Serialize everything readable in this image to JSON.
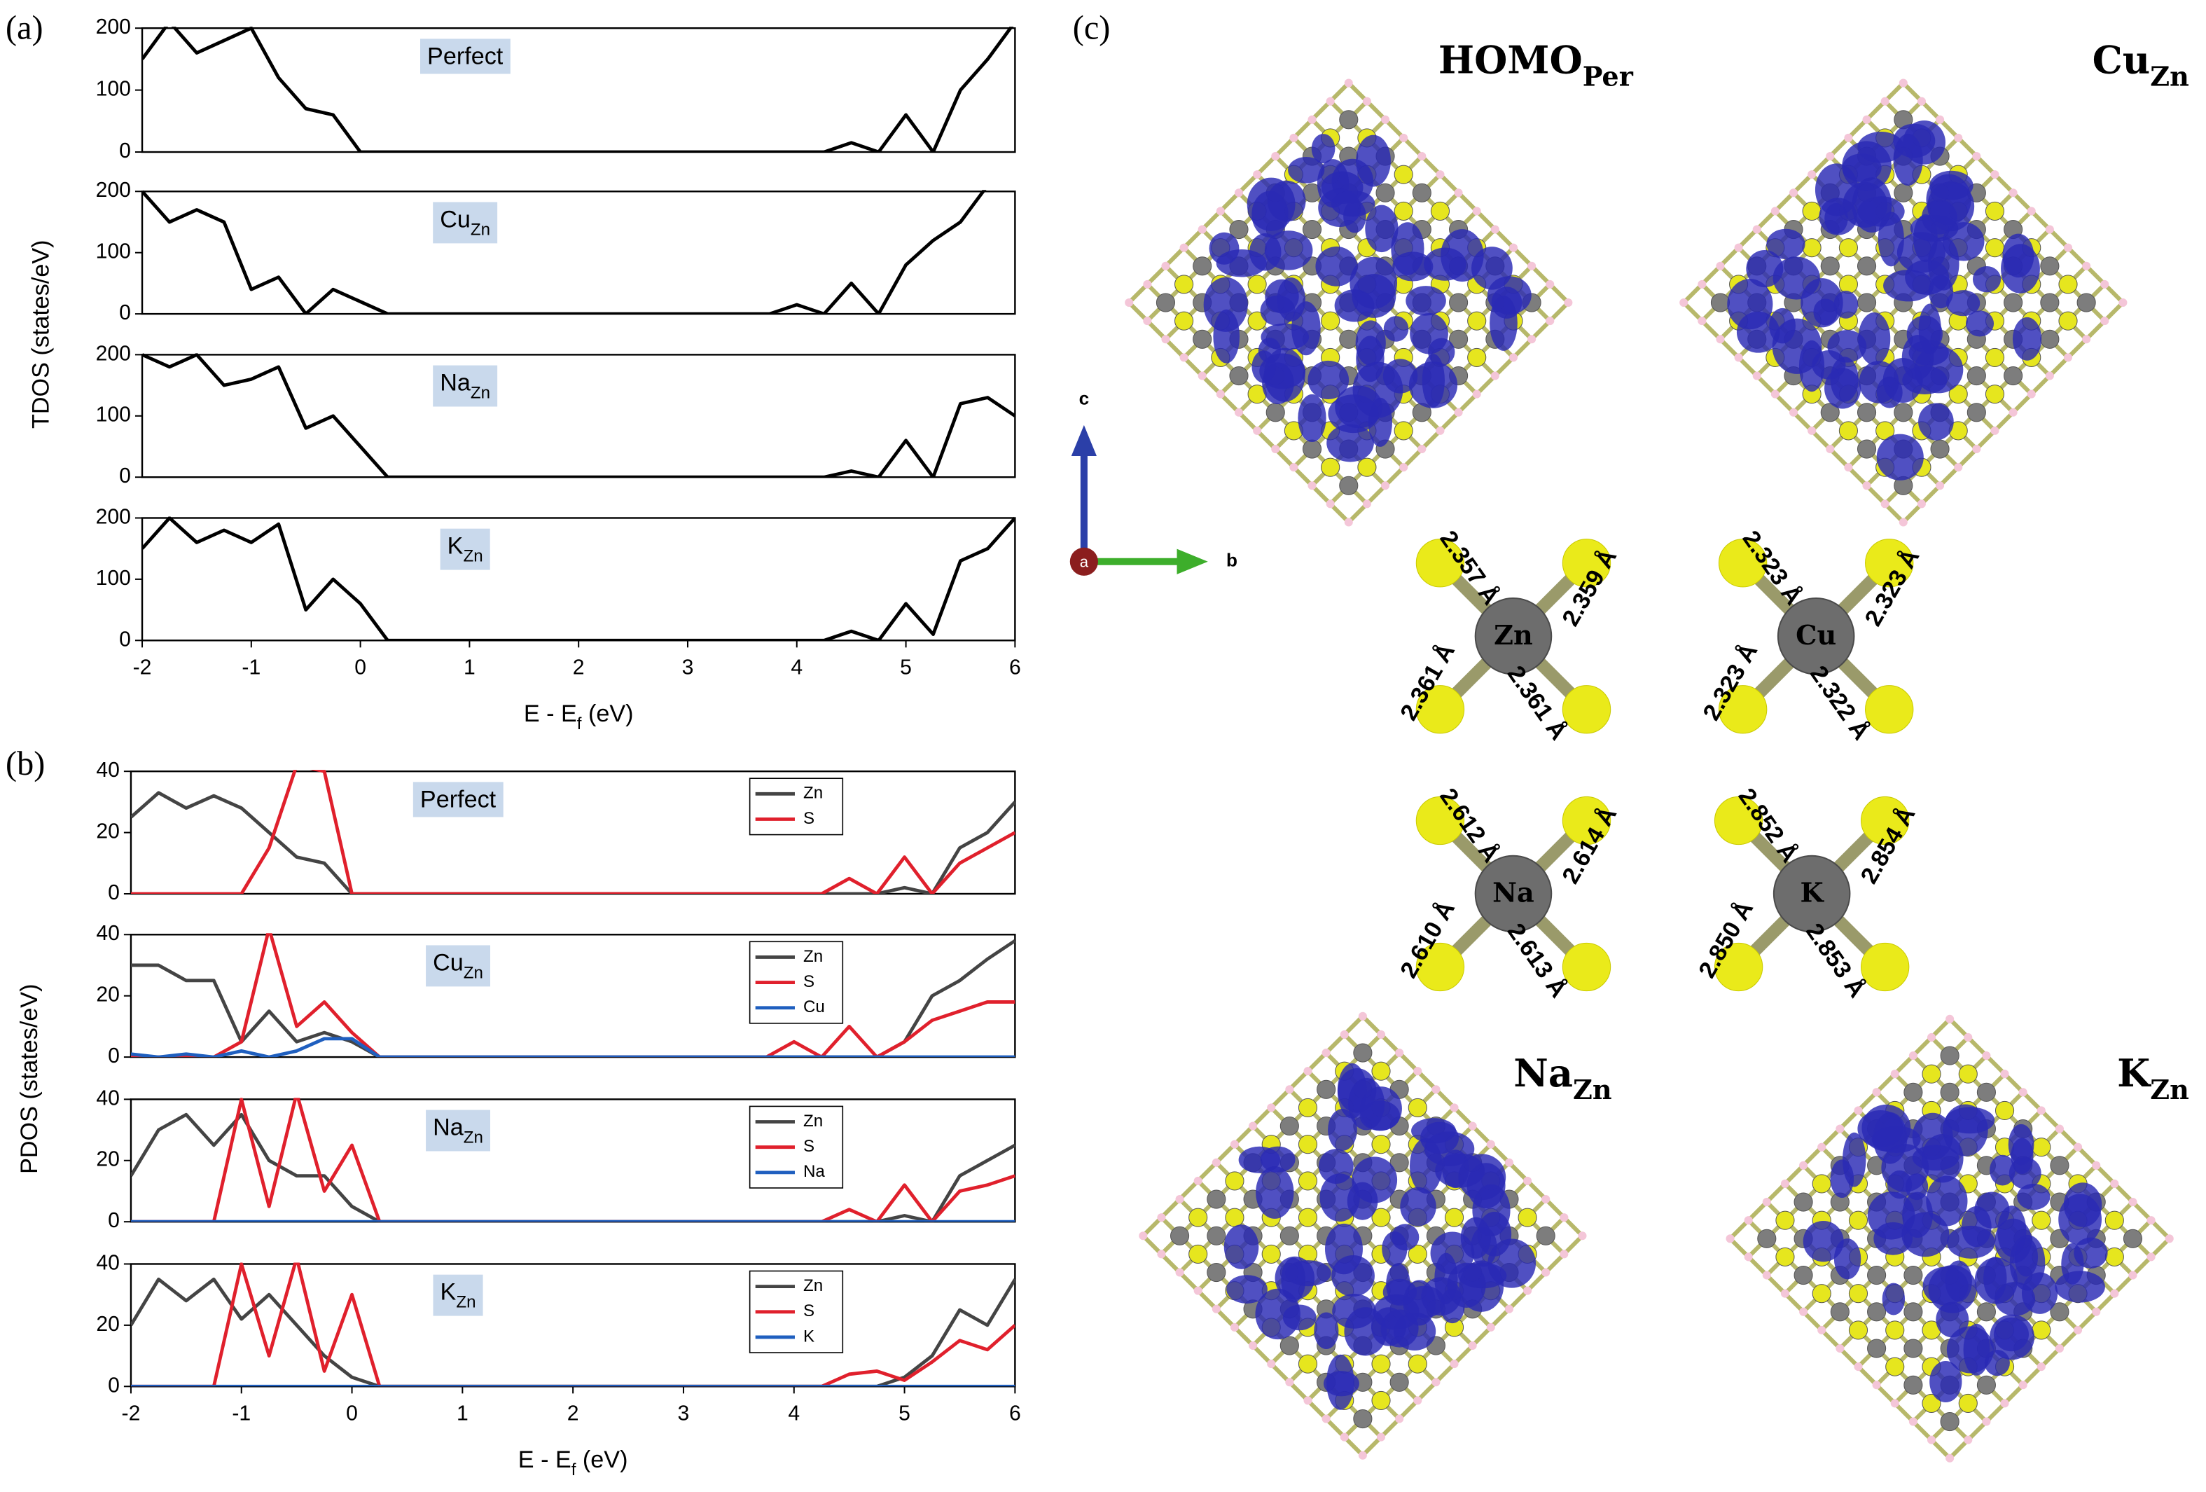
{
  "panel_labels": {
    "a": "(a)",
    "b": "(b)",
    "c": "(c)"
  },
  "chart_data": [
    {
      "type": "line",
      "annotation": [
        "Perfect"
      ],
      "ylabel": "TDOS (states/eV)",
      "x": [
        -2,
        -1.75,
        -1.5,
        -1.25,
        -1,
        -0.75,
        -0.5,
        -0.25,
        0,
        0.25,
        0.5,
        0.75,
        1,
        1.25,
        1.5,
        1.75,
        2,
        2.25,
        2.5,
        2.75,
        3,
        3.25,
        3.5,
        3.75,
        4,
        4.25,
        4.5,
        4.75,
        5,
        5.25,
        5.5,
        5.75,
        6
      ],
      "series": [
        {
          "color": "#000000",
          "values": [
            150,
            210,
            160,
            180,
            200,
            120,
            70,
            60,
            0,
            0,
            0,
            0,
            0,
            0,
            0,
            0,
            0,
            0,
            0,
            0,
            0,
            0,
            0,
            0,
            0,
            0,
            15,
            0,
            60,
            0,
            100,
            150,
            210
          ]
        }
      ],
      "xlim": [
        -2,
        6
      ],
      "ylim": [
        0,
        200
      ],
      "yticks": [
        0,
        100,
        200
      ]
    },
    {
      "type": "line",
      "annotation": [
        "Cu",
        "Zn"
      ],
      "x": [
        -2,
        -1.75,
        -1.5,
        -1.25,
        -1,
        -0.75,
        -0.5,
        -0.25,
        0,
        0.25,
        0.5,
        0.75,
        1,
        1.25,
        1.5,
        1.75,
        2,
        2.25,
        2.5,
        2.75,
        3,
        3.25,
        3.5,
        3.75,
        4,
        4.25,
        4.5,
        4.75,
        5,
        5.25,
        5.5,
        5.75,
        6
      ],
      "series": [
        {
          "color": "#000000",
          "values": [
            200,
            150,
            170,
            150,
            40,
            60,
            0,
            40,
            20,
            0,
            0,
            0,
            0,
            0,
            0,
            0,
            0,
            0,
            0,
            0,
            0,
            0,
            0,
            0,
            15,
            0,
            50,
            0,
            80,
            120,
            150,
            210,
            210
          ]
        }
      ],
      "xlim": [
        -2,
        6
      ],
      "ylim": [
        0,
        200
      ],
      "yticks": [
        0,
        100,
        200
      ]
    },
    {
      "type": "line",
      "annotation": [
        "Na",
        "Zn"
      ],
      "x": [
        -2,
        -1.75,
        -1.5,
        -1.25,
        -1,
        -0.75,
        -0.5,
        -0.25,
        0,
        0.25,
        0.5,
        0.75,
        1,
        1.25,
        1.5,
        1.75,
        2,
        2.25,
        2.5,
        2.75,
        3,
        3.25,
        3.5,
        3.75,
        4,
        4.25,
        4.5,
        4.75,
        5,
        5.25,
        5.5,
        5.75,
        6
      ],
      "series": [
        {
          "color": "#000000",
          "values": [
            200,
            180,
            200,
            150,
            160,
            180,
            80,
            100,
            50,
            0,
            0,
            0,
            0,
            0,
            0,
            0,
            0,
            0,
            0,
            0,
            0,
            0,
            0,
            0,
            0,
            0,
            10,
            0,
            60,
            0,
            120,
            130,
            100
          ]
        }
      ],
      "xlim": [
        -2,
        6
      ],
      "ylim": [
        0,
        200
      ],
      "yticks": [
        0,
        100,
        200
      ]
    },
    {
      "type": "line",
      "annotation": [
        "K",
        "Zn"
      ],
      "xlabel": [
        "E - E",
        "f",
        " (eV)"
      ],
      "x": [
        -2,
        -1.75,
        -1.5,
        -1.25,
        -1,
        -0.75,
        -0.5,
        -0.25,
        0,
        0.25,
        0.5,
        0.75,
        1,
        1.25,
        1.5,
        1.75,
        2,
        2.25,
        2.5,
        2.75,
        3,
        3.25,
        3.5,
        3.75,
        4,
        4.25,
        4.5,
        4.75,
        5,
        5.25,
        5.5,
        5.75,
        6
      ],
      "series": [
        {
          "color": "#000000",
          "values": [
            150,
            200,
            160,
            180,
            160,
            190,
            50,
            100,
            60,
            0,
            0,
            0,
            0,
            0,
            0,
            0,
            0,
            0,
            0,
            0,
            0,
            0,
            0,
            0,
            0,
            0,
            15,
            0,
            60,
            10,
            130,
            150,
            200
          ]
        }
      ],
      "xlim": [
        -2,
        6
      ],
      "ylim": [
        0,
        200
      ],
      "yticks": [
        0,
        100,
        200
      ],
      "xticks": [
        -2,
        -1,
        0,
        1,
        2,
        3,
        4,
        5,
        6
      ]
    },
    {
      "type": "line",
      "annotation": [
        "Perfect"
      ],
      "ylabel": "PDOS (states/eV)",
      "legend": "upper right",
      "x": [
        -2,
        -1.75,
        -1.5,
        -1.25,
        -1,
        -0.75,
        -0.5,
        -0.25,
        0,
        0.25,
        0.5,
        0.75,
        1,
        1.25,
        1.5,
        1.75,
        2,
        2.25,
        2.5,
        2.75,
        3,
        3.25,
        3.5,
        3.75,
        4,
        4.25,
        4.5,
        4.75,
        5,
        5.25,
        5.5,
        5.75,
        6
      ],
      "series": [
        {
          "name": "Zn",
          "color": "#444444",
          "values": [
            25,
            33,
            28,
            32,
            28,
            20,
            12,
            10,
            0,
            0,
            0,
            0,
            0,
            0,
            0,
            0,
            0,
            0,
            0,
            0,
            0,
            0,
            0,
            0,
            0,
            0,
            0,
            0,
            2,
            0,
            15,
            20,
            30
          ]
        },
        {
          "name": "S",
          "color": "#e0202c",
          "values": [
            0,
            0,
            0,
            0,
            0,
            15,
            42,
            40,
            0,
            0,
            0,
            0,
            0,
            0,
            0,
            0,
            0,
            0,
            0,
            0,
            0,
            0,
            0,
            0,
            0,
            0,
            5,
            0,
            12,
            0,
            10,
            15,
            20
          ]
        }
      ],
      "xlim": [
        -2,
        6
      ],
      "ylim": [
        0,
        40
      ],
      "yticks": [
        0,
        20,
        40
      ]
    },
    {
      "type": "line",
      "annotation": [
        "Cu",
        "Zn"
      ],
      "legend": "upper right",
      "x": [
        -2,
        -1.75,
        -1.5,
        -1.25,
        -1,
        -0.75,
        -0.5,
        -0.25,
        0,
        0.25,
        0.5,
        0.75,
        1,
        1.25,
        1.5,
        1.75,
        2,
        2.25,
        2.5,
        2.75,
        3,
        3.25,
        3.5,
        3.75,
        4,
        4.25,
        4.5,
        4.75,
        5,
        5.25,
        5.5,
        5.75,
        6
      ],
      "series": [
        {
          "name": "Zn",
          "color": "#444444",
          "values": [
            30,
            30,
            25,
            25,
            5,
            15,
            5,
            8,
            5,
            0,
            0,
            0,
            0,
            0,
            0,
            0,
            0,
            0,
            0,
            0,
            0,
            0,
            0,
            0,
            0,
            0,
            0,
            0,
            5,
            20,
            25,
            32,
            38
          ]
        },
        {
          "name": "S",
          "color": "#e0202c",
          "values": [
            0,
            0,
            0,
            0,
            5,
            42,
            10,
            18,
            8,
            0,
            0,
            0,
            0,
            0,
            0,
            0,
            0,
            0,
            0,
            0,
            0,
            0,
            0,
            0,
            5,
            0,
            10,
            0,
            5,
            12,
            15,
            18,
            18
          ]
        },
        {
          "name": "Cu",
          "color": "#1f5fbf",
          "values": [
            1,
            0,
            1,
            0,
            2,
            0,
            2,
            6,
            6,
            0,
            0,
            0,
            0,
            0,
            0,
            0,
            0,
            0,
            0,
            0,
            0,
            0,
            0,
            0,
            0,
            0,
            0,
            0,
            0,
            0,
            0,
            0,
            0
          ]
        }
      ],
      "xlim": [
        -2,
        6
      ],
      "ylim": [
        0,
        40
      ],
      "yticks": [
        0,
        20,
        40
      ]
    },
    {
      "type": "line",
      "annotation": [
        "Na",
        "Zn"
      ],
      "legend": "upper right",
      "x": [
        -2,
        -1.75,
        -1.5,
        -1.25,
        -1,
        -0.75,
        -0.5,
        -0.25,
        0,
        0.25,
        0.5,
        0.75,
        1,
        1.25,
        1.5,
        1.75,
        2,
        2.25,
        2.5,
        2.75,
        3,
        3.25,
        3.5,
        3.75,
        4,
        4.25,
        4.5,
        4.75,
        5,
        5.25,
        5.5,
        5.75,
        6
      ],
      "series": [
        {
          "name": "Zn",
          "color": "#444444",
          "values": [
            15,
            30,
            35,
            25,
            35,
            20,
            15,
            15,
            5,
            0,
            0,
            0,
            0,
            0,
            0,
            0,
            0,
            0,
            0,
            0,
            0,
            0,
            0,
            0,
            0,
            0,
            0,
            0,
            2,
            0,
            15,
            20,
            25
          ]
        },
        {
          "name": "S",
          "color": "#e0202c",
          "values": [
            0,
            0,
            0,
            0,
            40,
            5,
            42,
            10,
            25,
            0,
            0,
            0,
            0,
            0,
            0,
            0,
            0,
            0,
            0,
            0,
            0,
            0,
            0,
            0,
            0,
            0,
            4,
            0,
            12,
            0,
            10,
            12,
            15
          ]
        },
        {
          "name": "Na",
          "color": "#1f5fbf",
          "values": [
            0,
            0,
            0,
            0,
            0,
            0,
            0,
            0,
            0,
            0,
            0,
            0,
            0,
            0,
            0,
            0,
            0,
            0,
            0,
            0,
            0,
            0,
            0,
            0,
            0,
            0,
            0,
            0,
            0,
            0,
            0,
            0,
            0
          ]
        }
      ],
      "xlim": [
        -2,
        6
      ],
      "ylim": [
        0,
        40
      ],
      "yticks": [
        0,
        20,
        40
      ]
    },
    {
      "type": "line",
      "annotation": [
        "K",
        "Zn"
      ],
      "legend": "upper right",
      "xlabel": [
        "E - E",
        "f",
        " (eV)"
      ],
      "x": [
        -2,
        -1.75,
        -1.5,
        -1.25,
        -1,
        -0.75,
        -0.5,
        -0.25,
        0,
        0.25,
        0.5,
        0.75,
        1,
        1.25,
        1.5,
        1.75,
        2,
        2.25,
        2.5,
        2.75,
        3,
        3.25,
        3.5,
        3.75,
        4,
        4.25,
        4.5,
        4.75,
        5,
        5.25,
        5.5,
        5.75,
        6
      ],
      "series": [
        {
          "name": "Zn",
          "color": "#444444",
          "values": [
            20,
            35,
            28,
            35,
            22,
            30,
            20,
            10,
            3,
            0,
            0,
            0,
            0,
            0,
            0,
            0,
            0,
            0,
            0,
            0,
            0,
            0,
            0,
            0,
            0,
            0,
            0,
            0,
            3,
            10,
            25,
            20,
            35
          ]
        },
        {
          "name": "S",
          "color": "#e0202c",
          "values": [
            0,
            0,
            0,
            0,
            40,
            10,
            42,
            5,
            30,
            0,
            0,
            0,
            0,
            0,
            0,
            0,
            0,
            0,
            0,
            0,
            0,
            0,
            0,
            0,
            0,
            0,
            4,
            5,
            2,
            8,
            15,
            12,
            20
          ]
        },
        {
          "name": "K",
          "color": "#1f5fbf",
          "values": [
            0,
            0,
            0,
            0,
            0,
            0,
            0,
            0,
            0,
            0,
            0,
            0,
            0,
            0,
            0,
            0,
            0,
            0,
            0,
            0,
            0,
            0,
            0,
            0,
            0,
            0,
            0,
            0,
            0,
            0,
            0,
            0,
            0
          ]
        }
      ],
      "xlim": [
        -2,
        6
      ],
      "ylim": [
        0,
        40
      ],
      "yticks": [
        0,
        20,
        40
      ],
      "xticks": [
        -2,
        -1,
        0,
        1,
        2,
        3,
        4,
        5,
        6
      ]
    }
  ],
  "structures": {
    "axes": {
      "c": "c",
      "b": "b",
      "a": "a"
    },
    "isosurfaces": [
      {
        "title": [
          "HOMO",
          "Per"
        ]
      },
      {
        "title": [
          "Cu",
          "Zn"
        ]
      },
      {
        "title": [
          "Na",
          "Zn"
        ]
      },
      {
        "title": [
          "K",
          "Zn"
        ]
      }
    ],
    "sites": [
      {
        "atom": "Zn",
        "bonds": [
          "2.357 Å",
          "2.359 Å",
          "2.361 Å",
          "2.361 Å"
        ]
      },
      {
        "atom": "Cu",
        "bonds": [
          "2.323 Å",
          "2.323 Å",
          "2.323 Å",
          "2.322 Å"
        ]
      },
      {
        "atom": "Na",
        "bonds": [
          "2.612 Å",
          "2.614 Å",
          "2.610 Å",
          "2.613 Å"
        ]
      },
      {
        "atom": "K",
        "bonds": [
          "2.852 Å",
          "2.854 Å",
          "2.850 Å",
          "2.853 Å"
        ]
      }
    ]
  }
}
